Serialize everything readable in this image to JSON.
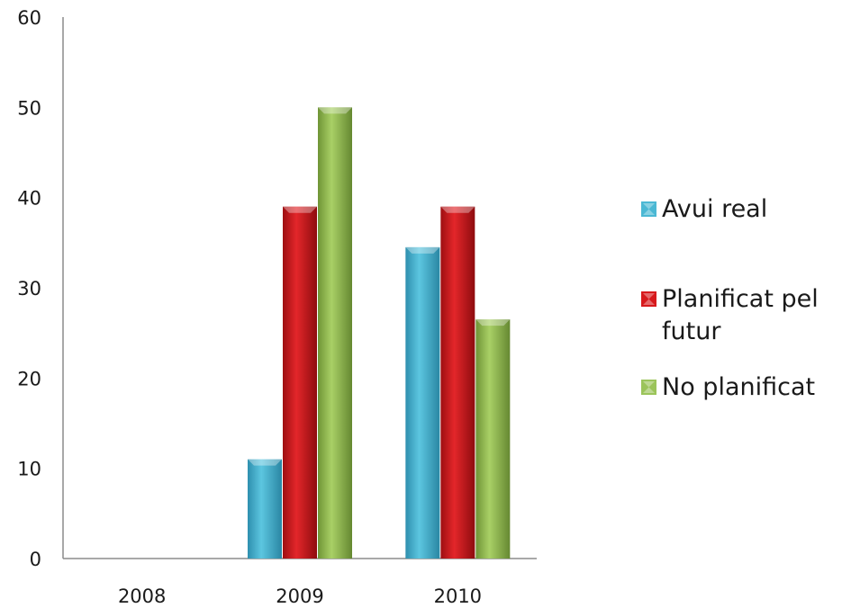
{
  "chart_data": {
    "type": "bar",
    "categories": [
      "2008",
      "2009",
      "2010"
    ],
    "series": [
      {
        "name": "Avui real",
        "values": [
          0,
          11,
          34.5
        ],
        "color": "#4bb8d4"
      },
      {
        "name": "Planificat pel futur",
        "values": [
          0,
          39,
          39
        ],
        "color": "#d7191c"
      },
      {
        "name": "No planificat",
        "values": [
          0,
          50,
          26.5
        ],
        "color": "#9bc45a"
      }
    ],
    "title": "",
    "xlabel": "",
    "ylabel": "",
    "ylim": [
      0,
      60
    ],
    "yticks": [
      "0",
      "10",
      "20",
      "30",
      "40",
      "50",
      "60"
    ],
    "grid": false,
    "legend_position": "right"
  }
}
